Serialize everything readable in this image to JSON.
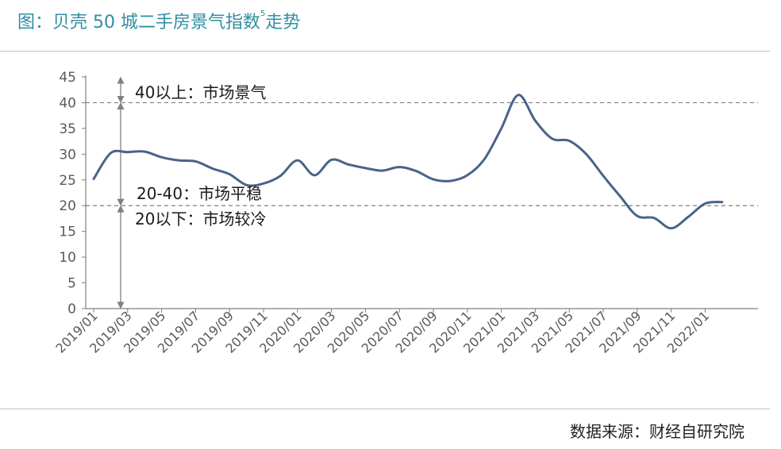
{
  "title": {
    "prefix": "图：贝壳 50 城二手房景气指数",
    "superscript": "5",
    "suffix": "走势"
  },
  "watermark": "数据来源：财经自研究院",
  "colors": {
    "title": "#2f8fa3",
    "line": "#4a6389",
    "axis": "#7f7f7f",
    "reference_line": "#7f7f7f",
    "arrow": "#808080"
  },
  "chart_data": {
    "type": "line",
    "ylim": [
      0,
      45
    ],
    "yticks": [
      "0",
      "5",
      "10",
      "15",
      "20",
      "25",
      "30",
      "35",
      "40",
      "45"
    ],
    "xticks": [
      "2019/01",
      "2019/03",
      "2019/05",
      "2019/07",
      "2019/09",
      "2019/11",
      "2020/01",
      "2020/03",
      "2020/05",
      "2020/07",
      "2020/09",
      "2020/11",
      "2021/01",
      "2021/03",
      "2021/05",
      "2021/07",
      "2021/09",
      "2021/11",
      "2022/01"
    ],
    "x": [
      "2019/01",
      "2019/02",
      "2019/03",
      "2019/04",
      "2019/05",
      "2019/06",
      "2019/07",
      "2019/08",
      "2019/09",
      "2019/10",
      "2019/11",
      "2019/12",
      "2020/01",
      "2020/02",
      "2020/03",
      "2020/04",
      "2020/05",
      "2020/06",
      "2020/07",
      "2020/08",
      "2020/09",
      "2020/10",
      "2020/11",
      "2020/12",
      "2021/01",
      "2021/02",
      "2021/03",
      "2021/04",
      "2021/05",
      "2021/06",
      "2021/07",
      "2021/08",
      "2021/09",
      "2021/10",
      "2021/11",
      "2021/12",
      "2022/01",
      "2022/02"
    ],
    "series": [
      {
        "values": [
          25.2,
          30.2,
          30.4,
          30.5,
          29.4,
          28.8,
          28.6,
          27.2,
          26.1,
          24.0,
          24.3,
          25.8,
          28.8,
          25.9,
          28.9,
          28.0,
          27.3,
          26.8,
          27.5,
          26.7,
          25.1,
          24.8,
          25.9,
          29.0,
          35.0,
          41.5,
          36.5,
          33.0,
          32.6,
          30.0,
          25.8,
          21.8,
          18.0,
          17.6,
          15.6,
          17.8,
          20.4,
          20.7
        ]
      }
    ],
    "reference_lines": [
      40,
      20
    ],
    "zones": [
      {
        "label": "40以上：市场景气",
        "from": 40,
        "to": 45
      },
      {
        "label": "20-40：市场平稳",
        "from": 20,
        "to": 40
      },
      {
        "label": "20以下：市场较冷",
        "from": 0,
        "to": 20
      }
    ],
    "grid": false
  }
}
